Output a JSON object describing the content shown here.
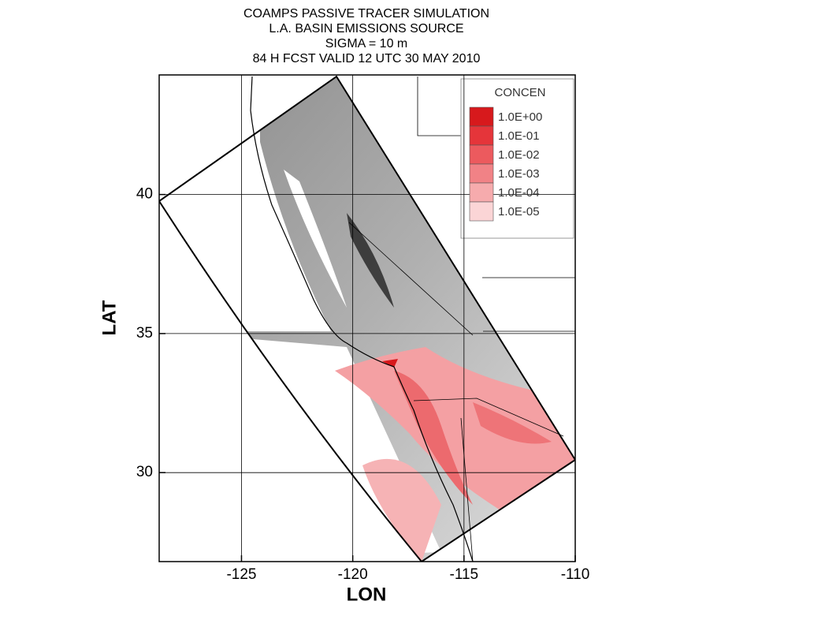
{
  "title": [
    "COAMPS PASSIVE TRACER SIMULATION",
    "L.A. BASIN EMISSIONS SOURCE",
    "SIGMA = 10 m",
    "84 H FCST VALID 12 UTC 30 MAY 2010"
  ],
  "map": {
    "xlabel": "LON",
    "ylabel": "LAT",
    "xlim": [
      -128.7,
      -110
    ],
    "ylim": [
      26.8,
      44.3
    ],
    "xticks": [
      -125,
      -120,
      -115,
      -110
    ],
    "yticks": [
      30,
      35,
      40
    ],
    "grid": true
  },
  "legend": {
    "title": "CONCEN",
    "entries": [
      {
        "label": "1.0E+00",
        "color": "#d7191c"
      },
      {
        "label": "1.0E-01",
        "color": "#e5353a"
      },
      {
        "label": "1.0E-02",
        "color": "#ec5a5e"
      },
      {
        "label": "1.0E-03",
        "color": "#f18286"
      },
      {
        "label": "1.0E-04",
        "color": "#f6abad"
      },
      {
        "label": "1.0E-05",
        "color": "#fbd5d6"
      }
    ]
  }
}
